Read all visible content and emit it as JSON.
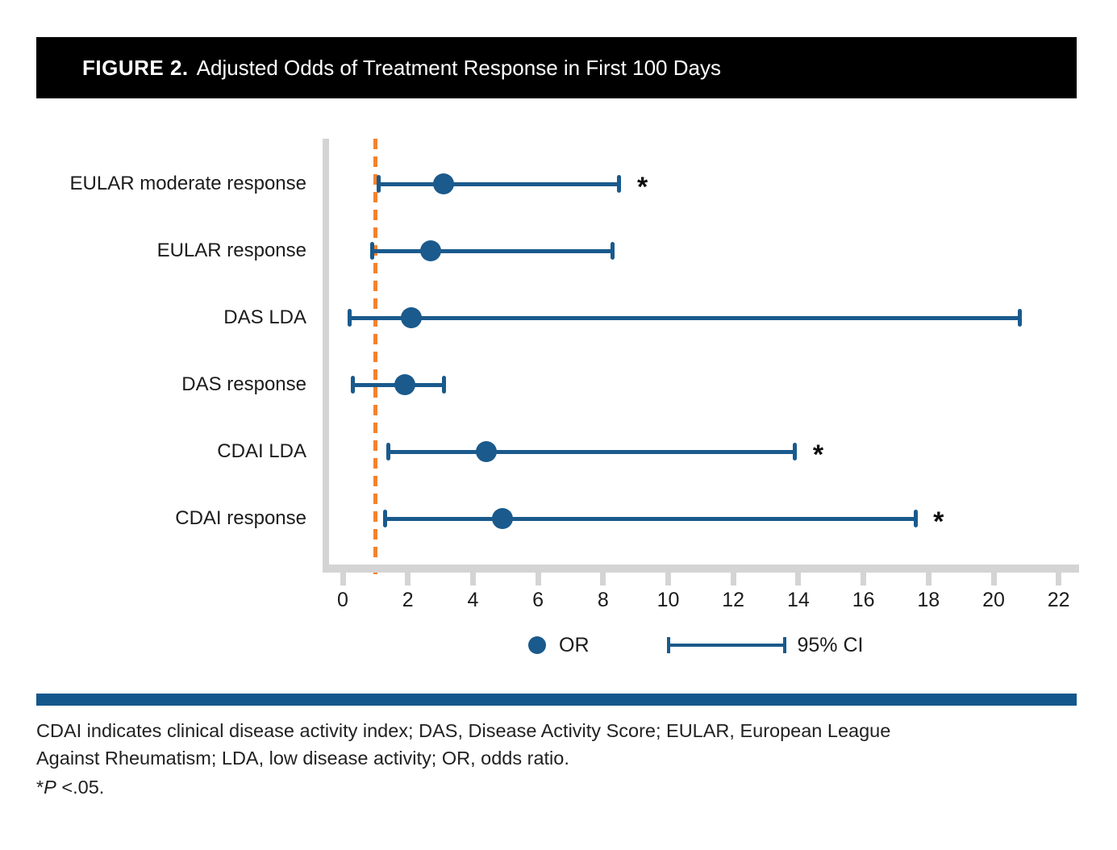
{
  "title": {
    "label": "FIGURE 2.",
    "text": "Adjusted Odds of Treatment Response in First 100 Days"
  },
  "colors": {
    "point_blue": "#1a5a8c",
    "reference_orange": "#f5822d",
    "axis_gray": "#d4d4d4",
    "separator_blue": "#14578c",
    "title_bar_black": "#000000"
  },
  "chart_data": {
    "type": "scatter",
    "subtype": "forest-plot-horizontal",
    "title": "Adjusted Odds of Treatment Response in First 100 Days",
    "categories": [
      "EULAR moderate response",
      "EULAR response",
      "DAS LDA",
      "DAS response",
      "CDAI LDA",
      "CDAI response"
    ],
    "series": [
      {
        "name": "OR",
        "values": [
          3.1,
          2.7,
          2.1,
          1.9,
          4.4,
          4.9
        ]
      },
      {
        "name": "95% CI lower",
        "values": [
          1.1,
          0.9,
          0.2,
          0.3,
          1.4,
          1.3
        ]
      },
      {
        "name": "95% CI upper",
        "values": [
          8.5,
          8.3,
          20.8,
          3.1,
          13.9,
          17.6
        ]
      }
    ],
    "significant": [
      true,
      false,
      false,
      false,
      true,
      true
    ],
    "significance_marker": "*",
    "reference_line_x": 1,
    "xlabel": "",
    "ylabel": "",
    "xlim": [
      0,
      22.6
    ],
    "xticks": [
      0,
      2,
      4,
      6,
      8,
      10,
      12,
      14,
      16,
      18,
      20,
      22
    ],
    "grid": false,
    "legend_position": "bottom"
  },
  "legend": {
    "or_label": "OR",
    "ci_label": "95% CI"
  },
  "footnote": {
    "abbreviations": "CDAI indicates clinical disease activity index; DAS, Disease Activity Score; EULAR, European League\nAgainst Rheumatism; LDA, low disease activity; OR, odds ratio.",
    "p_marker": "*",
    "p_symbol": "P",
    "p_rest": " <.05."
  }
}
